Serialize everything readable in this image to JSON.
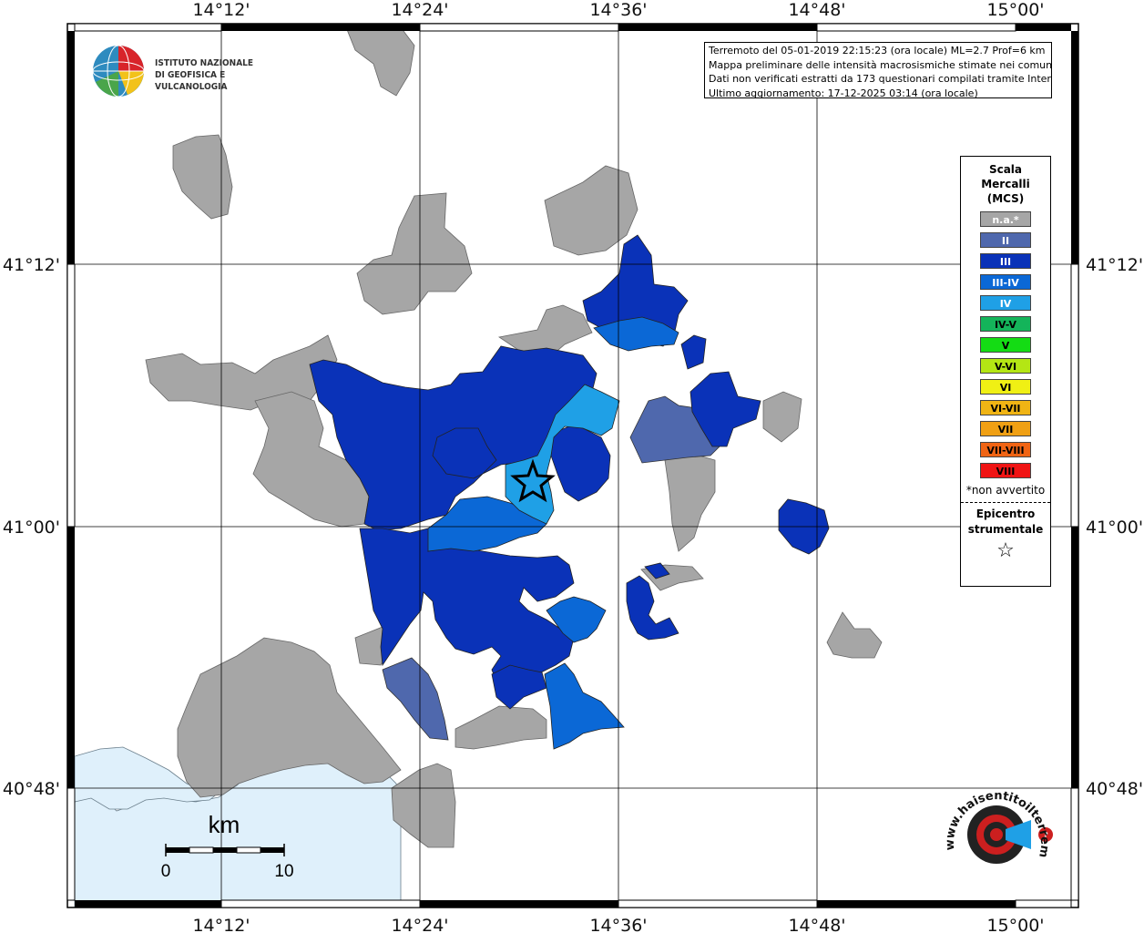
{
  "map": {
    "lon_labels": [
      "14°12'",
      "14°24'",
      "14°36'",
      "14°48'",
      "15°00'"
    ],
    "lat_labels": [
      "41°12'",
      "41°00'",
      "40°48'"
    ]
  },
  "info_box": {
    "line1": "Terremoto del 05-01-2019 22:15:23 (ora locale) ML=2.7 Prof=6 km",
    "line2": "Mappa preliminare delle intensità macrosismiche stimate nei comuni",
    "line3": "Dati non verificati estratti da 173 questionari compilati tramite Internet.",
    "line4": "Ultimo aggiornamento: 17-12-2025 03:14 (ora locale)"
  },
  "logo": {
    "line1": "ISTITUTO NAZIONALE",
    "line2": "DI GEOFISICA E VULCANOLOGIA"
  },
  "legend": {
    "title1": "Scala",
    "title2": "Mercalli",
    "title3": "(MCS)",
    "classes": [
      {
        "label": "n.a.*",
        "color": "#a6a6a6",
        "text_color": "#ffffff"
      },
      {
        "label": "II",
        "color": "#4f68ad",
        "text_color": "#ffffff"
      },
      {
        "label": "III",
        "color": "#0a32b8",
        "text_color": "#ffffff"
      },
      {
        "label": "III-IV",
        "color": "#0b68d6",
        "text_color": "#ffffff"
      },
      {
        "label": "IV",
        "color": "#1fa0e6",
        "text_color": "#ffffff"
      },
      {
        "label": "IV-V",
        "color": "#14b45a",
        "text_color": "#000000"
      },
      {
        "label": "V",
        "color": "#14dc14",
        "text_color": "#000000"
      },
      {
        "label": "V-VI",
        "color": "#b4e614",
        "text_color": "#000000"
      },
      {
        "label": "VI",
        "color": "#f0f014",
        "text_color": "#000000"
      },
      {
        "label": "VI-VII",
        "color": "#f0b414",
        "text_color": "#000000"
      },
      {
        "label": "VII",
        "color": "#f0a014",
        "text_color": "#000000"
      },
      {
        "label": "VII-VIII",
        "color": "#f06414",
        "text_color": "#000000"
      },
      {
        "label": "VIII",
        "color": "#f01414",
        "text_color": "#000000"
      }
    ],
    "note": "*non avvertito",
    "epicenter1": "Epicentro",
    "epicenter2": "strumentale",
    "epicenter_symbol": "☆"
  },
  "scale_bar": {
    "unit": "km",
    "start": "0",
    "end": "10"
  },
  "hsit_logo": {
    "text": "www.haisentitoilterremoto.it"
  },
  "colors": {
    "sea": "#dff0fb",
    "na": "#a6a6a6",
    "ii": "#4f68ad",
    "iii": "#0a32b8",
    "iii_iv": "#0b68d6",
    "iv": "#1fa0e6"
  }
}
